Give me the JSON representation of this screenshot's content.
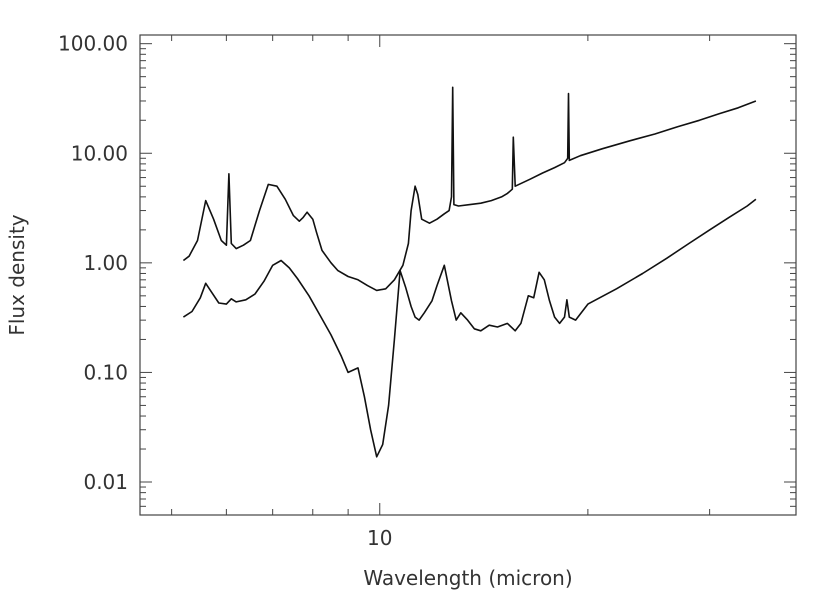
{
  "chart_data": {
    "type": "line",
    "title": "",
    "xlabel": "Wavelength (micron)",
    "ylabel": "Flux density",
    "x_scale": "log",
    "y_scale": "log",
    "xlim": [
      4.5,
      40
    ],
    "ylim": [
      0.005,
      120
    ],
    "grid": false,
    "x_tick_labels": [
      {
        "value": 10,
        "label": "10"
      }
    ],
    "y_tick_labels": [
      {
        "value": 100,
        "label": "100.00"
      },
      {
        "value": 10,
        "label": "10.00"
      },
      {
        "value": 1,
        "label": "1.00"
      },
      {
        "value": 0.1,
        "label": "0.10"
      },
      {
        "value": 0.01,
        "label": "0.01"
      }
    ],
    "line_color": "#111111",
    "series": [
      {
        "x": [
          5.2,
          5.3,
          5.45,
          5.6,
          5.75,
          5.9,
          6.0,
          6.05,
          6.1,
          6.2,
          6.35,
          6.5,
          6.7,
          6.9,
          7.1,
          7.3,
          7.5,
          7.65,
          7.75,
          7.85,
          8.0,
          8.1,
          8.25,
          8.5,
          8.7,
          9.0,
          9.3,
          9.6,
          9.9,
          10.2,
          10.5,
          10.8,
          11.0,
          11.1,
          11.25,
          11.35,
          11.5,
          11.8,
          12.1,
          12.4,
          12.6,
          12.7,
          12.75,
          12.8,
          13.0,
          13.5,
          14.0,
          14.5,
          15.0,
          15.3,
          15.55,
          15.6,
          15.7,
          16.5,
          17.2,
          17.9,
          18.5,
          18.7,
          18.75,
          18.8,
          19.5,
          21,
          23,
          25,
          27,
          29,
          31,
          33,
          35
        ],
        "y": [
          1.05,
          1.15,
          1.6,
          3.7,
          2.5,
          1.6,
          1.45,
          6.5,
          1.5,
          1.35,
          1.45,
          1.6,
          3.0,
          5.2,
          5.0,
          3.8,
          2.7,
          2.4,
          2.6,
          2.9,
          2.5,
          1.9,
          1.3,
          1.0,
          0.85,
          0.75,
          0.7,
          0.62,
          0.56,
          0.58,
          0.7,
          0.95,
          1.5,
          3.0,
          5.0,
          4.2,
          2.5,
          2.3,
          2.5,
          2.8,
          3.0,
          4.0,
          40,
          3.4,
          3.3,
          3.4,
          3.5,
          3.7,
          4.0,
          4.3,
          4.7,
          14,
          5.0,
          5.8,
          6.6,
          7.4,
          8.2,
          9,
          35,
          8.6,
          9.5,
          11.0,
          13.0,
          15.0,
          17.5,
          20.0,
          23.0,
          26.0,
          30.0
        ]
      },
      {
        "x": [
          5.2,
          5.35,
          5.5,
          5.6,
          5.7,
          5.85,
          6.0,
          6.1,
          6.2,
          6.4,
          6.6,
          6.8,
          7.0,
          7.2,
          7.4,
          7.6,
          7.9,
          8.2,
          8.5,
          8.8,
          9.0,
          9.3,
          9.5,
          9.7,
          9.9,
          10.1,
          10.3,
          10.5,
          10.7,
          10.9,
          11.1,
          11.25,
          11.4,
          11.6,
          11.9,
          12.1,
          12.4,
          12.7,
          12.9,
          13.1,
          13.4,
          13.7,
          14.0,
          14.4,
          14.8,
          15.3,
          15.7,
          16.0,
          16.4,
          16.7,
          17.0,
          17.3,
          17.6,
          17.9,
          18.2,
          18.5,
          18.65,
          18.8,
          19.2,
          20,
          22,
          24,
          26,
          28,
          30,
          32,
          34,
          35
        ],
        "y": [
          0.32,
          0.36,
          0.48,
          0.65,
          0.55,
          0.43,
          0.42,
          0.47,
          0.44,
          0.46,
          0.52,
          0.68,
          0.95,
          1.05,
          0.9,
          0.72,
          0.5,
          0.33,
          0.22,
          0.14,
          0.1,
          0.11,
          0.06,
          0.03,
          0.017,
          0.022,
          0.05,
          0.2,
          0.85,
          0.6,
          0.4,
          0.32,
          0.3,
          0.35,
          0.45,
          0.62,
          0.95,
          0.45,
          0.3,
          0.35,
          0.3,
          0.25,
          0.24,
          0.27,
          0.26,
          0.28,
          0.24,
          0.28,
          0.5,
          0.48,
          0.82,
          0.7,
          0.45,
          0.32,
          0.28,
          0.32,
          0.46,
          0.32,
          0.3,
          0.42,
          0.58,
          0.8,
          1.1,
          1.5,
          2.0,
          2.6,
          3.3,
          3.8
        ]
      }
    ]
  }
}
